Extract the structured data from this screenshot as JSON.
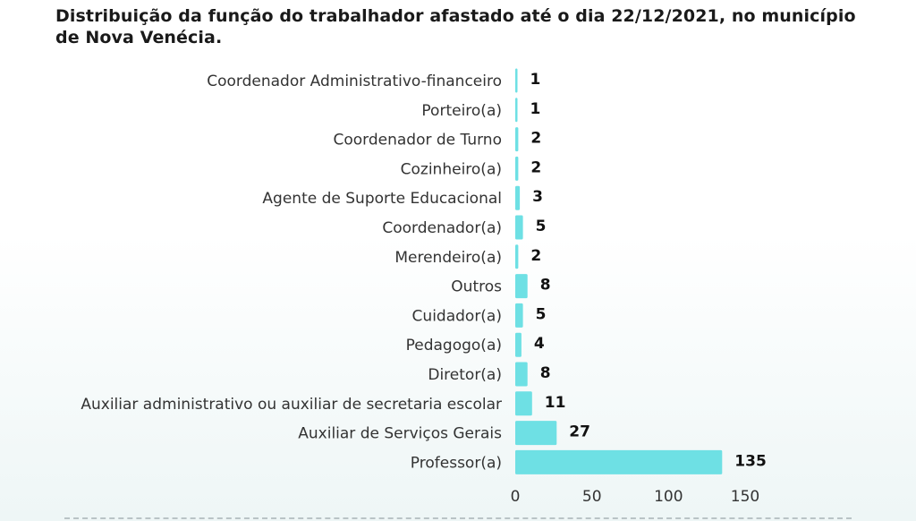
{
  "title": "Distribuição da função do trabalhador afastado até o dia 22/12/2021, no município de Nova Venécia.",
  "chart_data": {
    "type": "bar",
    "orientation": "horizontal",
    "title": "Distribuição da função do trabalhador afastado até o dia 22/12/2021, no município de Nova Venécia.",
    "xlabel": "",
    "ylabel": "",
    "xlim": [
      0,
      150
    ],
    "xticks": [
      0,
      50,
      100,
      150
    ],
    "grid": false,
    "legend": "none",
    "bar_color": "#6ee0e4",
    "categories": [
      "Coordenador Administrativo-financeiro",
      "Porteiro(a)",
      "Coordenador de Turno",
      "Cozinheiro(a)",
      "Agente de Suporte Educacional",
      "Coordenador(a)",
      "Merendeiro(a)",
      "Outros",
      "Cuidador(a)",
      "Pedagogo(a)",
      "Diretor(a)",
      "Auxiliar administrativo ou auxiliar de secretaria escolar",
      "Auxiliar de Serviços Gerais",
      "Professor(a)"
    ],
    "values": [
      1,
      1,
      2,
      2,
      3,
      5,
      2,
      8,
      5,
      4,
      8,
      11,
      27,
      135
    ]
  }
}
